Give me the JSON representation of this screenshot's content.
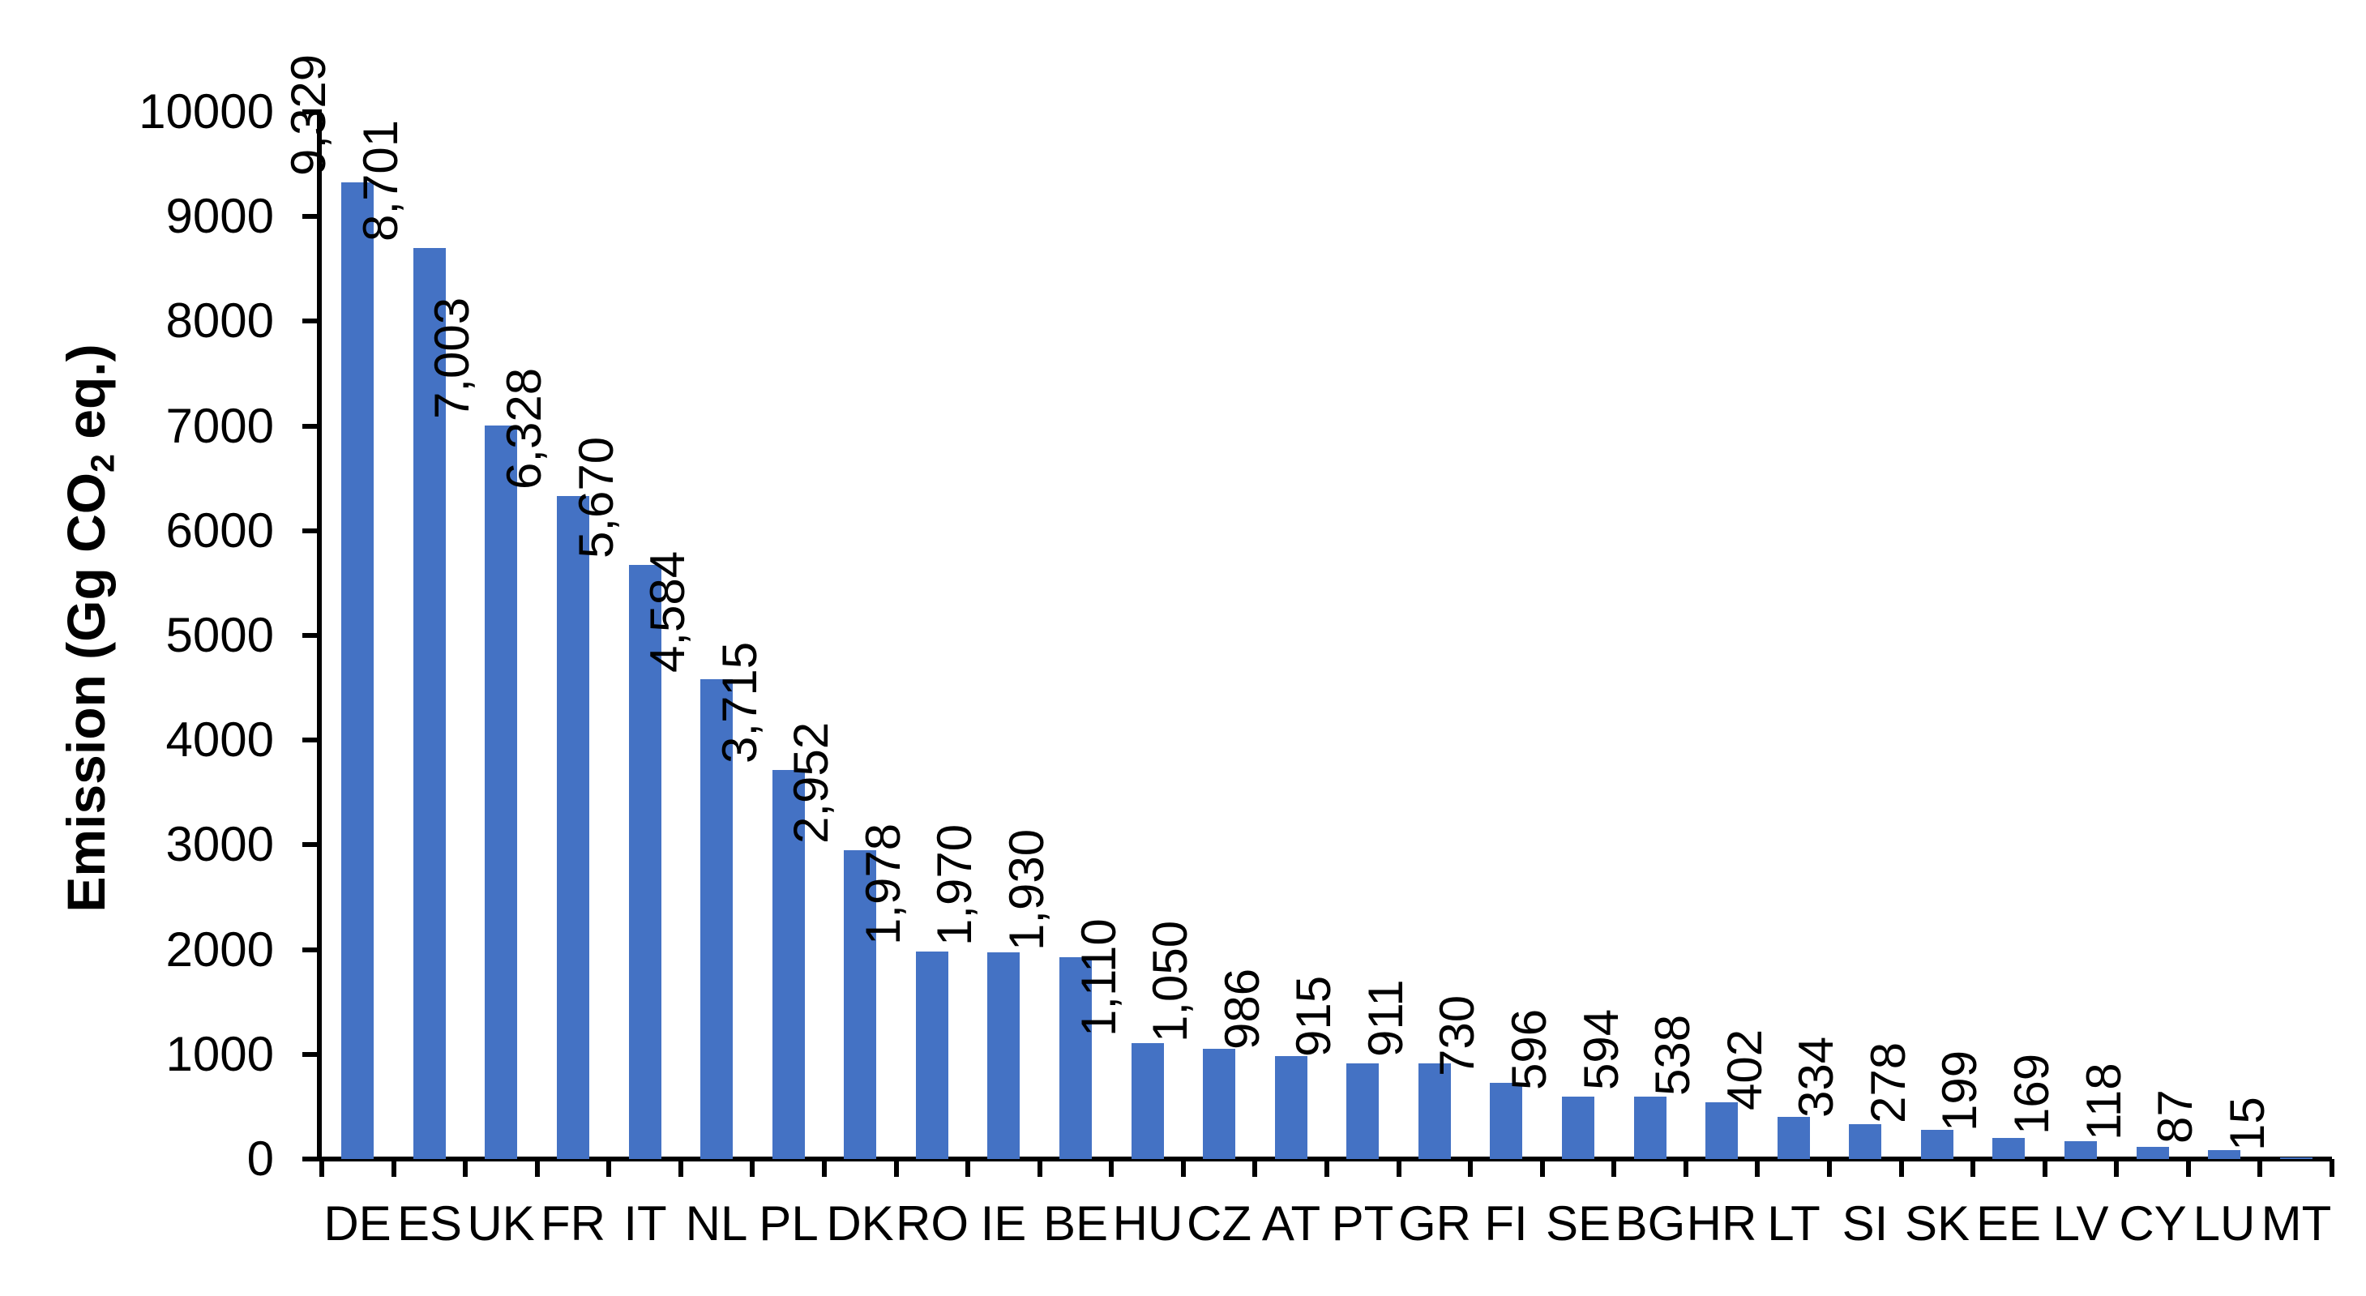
{
  "chart_data": {
    "type": "bar",
    "title": "",
    "ylabel_prefix": "Emission (Gg CO",
    "ylabel_sub": "2",
    "ylabel_suffix": " eq.)",
    "xlabel": "",
    "categories": [
      "DE",
      "ES",
      "UK",
      "FR",
      "IT",
      "NL",
      "PL",
      "DK",
      "RO",
      "IE",
      "BE",
      "HU",
      "CZ",
      "AT",
      "PT",
      "GR",
      "FI",
      "SE",
      "BG",
      "HR",
      "LT",
      "SI",
      "SK",
      "EE",
      "LV",
      "CY",
      "LU",
      "MT"
    ],
    "values": [
      9329,
      8701,
      7003,
      6328,
      5670,
      4584,
      3715,
      2952,
      1978,
      1970,
      1930,
      1110,
      1050,
      986,
      915,
      911,
      730,
      596,
      594,
      538,
      402,
      334,
      278,
      199,
      169,
      118,
      87,
      15
    ],
    "value_labels": [
      "9,329",
      "8,701",
      "7,003",
      "6,328",
      "5,670",
      "4,584",
      "3,715",
      "2,952",
      "1,978",
      "1,970",
      "1,930",
      "1,110",
      "1,050",
      "986",
      "915",
      "911",
      "730",
      "596",
      "594",
      "538",
      "402",
      "334",
      "278",
      "199",
      "169",
      "118",
      "87",
      "15"
    ],
    "y_ticks": [
      "0",
      "1000",
      "2000",
      "3000",
      "4000",
      "5000",
      "6000",
      "7000",
      "8000",
      "9000",
      "10000"
    ],
    "ylim": [
      0,
      10000
    ],
    "grid": false,
    "legend_position": "none",
    "bar_color": "#4472C4",
    "axis_color": "#000000",
    "text_color": "#000000"
  }
}
